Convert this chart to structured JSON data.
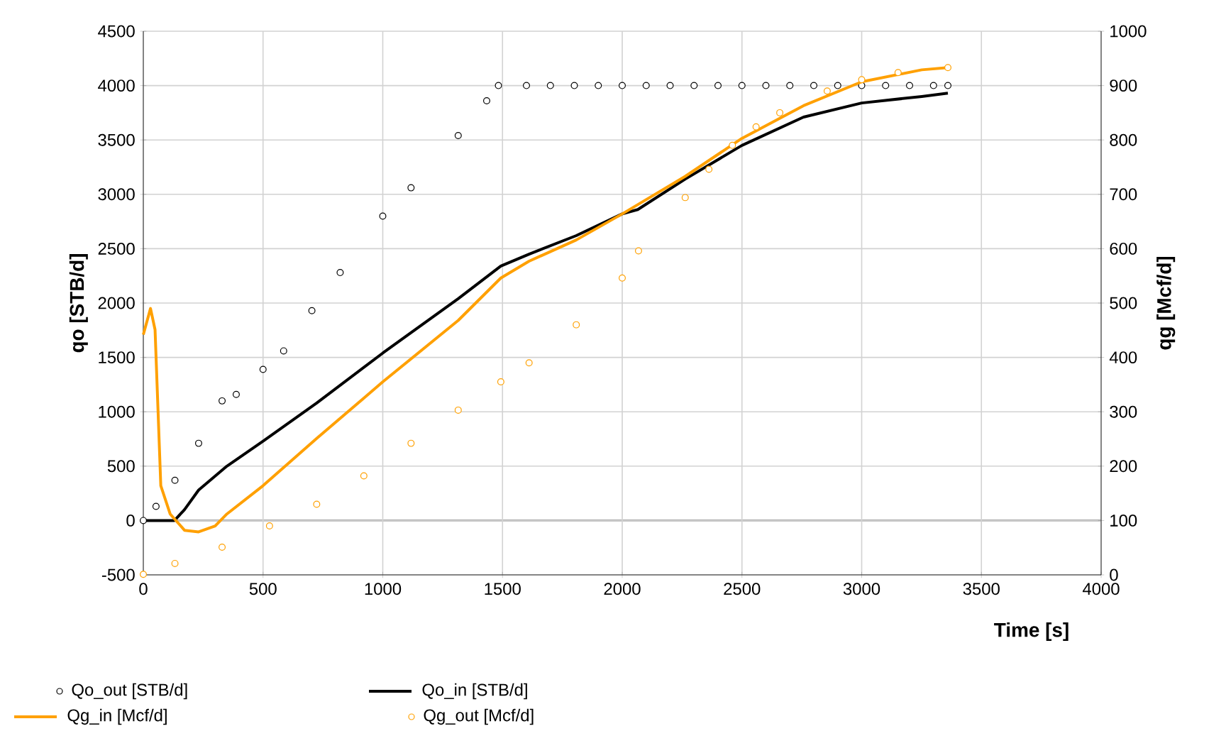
{
  "chart_data": {
    "type": "line",
    "xlabel": "Time [s]",
    "ylabel": "qo [STB/d]",
    "y2label": "qg [Mcf/d]",
    "xlim": [
      0,
      4000
    ],
    "xticks": [
      0,
      500,
      1000,
      1500,
      2000,
      2500,
      3000,
      3500,
      4000
    ],
    "ylim": [
      -500,
      4500
    ],
    "yticks": [
      -500,
      0,
      500,
      1000,
      1500,
      2000,
      2500,
      3000,
      3500,
      4000,
      4500
    ],
    "y2lim": [
      0,
      1000
    ],
    "y2ticks": [
      0,
      100,
      200,
      300,
      400,
      500,
      600,
      700,
      800,
      900,
      1000
    ],
    "grid": true,
    "legend": "bottom",
    "series": [
      {
        "name": "Qo_out [STB/d]",
        "type": "scatter",
        "marker": "circle",
        "color": "#000000",
        "x": [
          0,
          53,
          132,
          231,
          329,
          388,
          500,
          586,
          704,
          822,
          1000,
          1118,
          1315,
          1434,
          1483,
          1600,
          1700,
          1800,
          1900,
          2000,
          2100,
          2200,
          2300,
          2400,
          2500,
          2600,
          2700,
          2800,
          2900,
          3000,
          3100,
          3200,
          3300,
          3360
        ],
        "values": [
          0,
          130,
          370,
          710,
          1100,
          1160,
          1390,
          1560,
          1930,
          2280,
          2800,
          3060,
          3540,
          3860,
          4000,
          4000,
          4000,
          4000,
          4000,
          4000,
          4000,
          4000,
          4000,
          4000,
          4000,
          4000,
          4000,
          4000,
          4000,
          4000,
          4000,
          4000,
          4000,
          4000
        ]
      },
      {
        "name": "Qo_in [STB/d]",
        "line_style": "solid",
        "color": "#000000",
        "x": [
          0,
          130,
          172,
          231,
          349,
          500,
          724,
          1000,
          1315,
          1493,
          1611,
          1808,
          2000,
          2065,
          2263,
          2500,
          2757,
          3000,
          3251,
          3360
        ],
        "values": [
          0,
          0,
          100,
          280,
          500,
          730,
          1080,
          1540,
          2040,
          2340,
          2450,
          2620,
          2820,
          2860,
          3140,
          3450,
          3710,
          3840,
          3900,
          3930
        ]
      },
      {
        "name": "Qg_in [Mcf/d]",
        "line_style": "solid",
        "axis": "y2",
        "color": "#ffa000",
        "x": [
          0,
          30,
          49,
          73,
          112,
          172,
          231,
          300,
          349,
          500,
          724,
          1000,
          1315,
          1493,
          1611,
          1808,
          2000,
          2263,
          2500,
          2757,
          3000,
          3251,
          3360
        ],
        "values": [
          442,
          490,
          451,
          164,
          112,
          82,
          79,
          90,
          112,
          164,
          251,
          355,
          468,
          546,
          577,
          616,
          664,
          733,
          803,
          863,
          907,
          929,
          933
        ]
      },
      {
        "name": "Qg_out [Mcf/d]",
        "type": "scatter",
        "marker": "circle",
        "axis": "y2",
        "color": "#ffa000",
        "x": [
          0,
          132,
          329,
          527,
          724,
          921,
          1118,
          1315,
          1493,
          1611,
          1808,
          2000,
          2068,
          2263,
          2362,
          2460,
          2559,
          2658,
          2856,
          3000,
          3152,
          3360
        ],
        "values": [
          1,
          21,
          51,
          90,
          130,
          182,
          242,
          303,
          355,
          390,
          460,
          546,
          596,
          694,
          746,
          790,
          824,
          850,
          890,
          911,
          924,
          933
        ]
      }
    ]
  }
}
